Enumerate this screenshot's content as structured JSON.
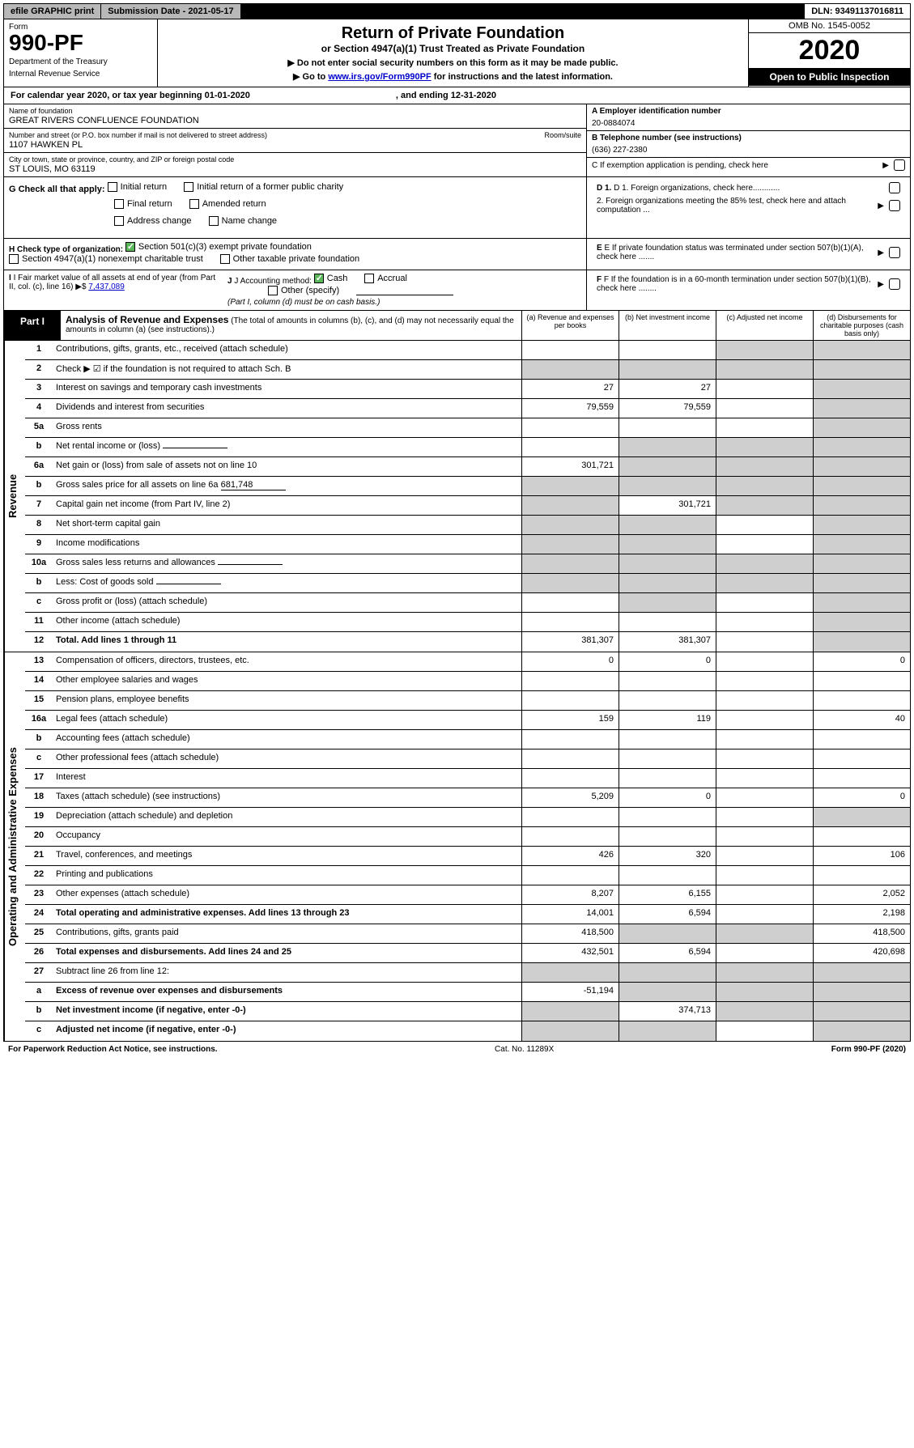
{
  "topbar": {
    "efile": "efile GRAPHIC print",
    "subdate": "Submission Date - 2021-05-17",
    "dln": "DLN: 93491137016811"
  },
  "header": {
    "form_label": "Form",
    "form_no": "990-PF",
    "dept": "Department of the Treasury",
    "irs": "Internal Revenue Service",
    "title": "Return of Private Foundation",
    "subtitle": "or Section 4947(a)(1) Trust Treated as Private Foundation",
    "note1": "▶ Do not enter social security numbers on this form as it may be made public.",
    "note2_pre": "▶ Go to ",
    "note2_link": "www.irs.gov/Form990PF",
    "note2_post": " for instructions and the latest information.",
    "omb": "OMB No. 1545-0052",
    "year": "2020",
    "inspect": "Open to Public Inspection"
  },
  "calyear": {
    "text": "For calendar year 2020, or tax year beginning 01-01-2020",
    "ending": ", and ending 12-31-2020"
  },
  "entity": {
    "name_label": "Name of foundation",
    "name": "GREAT RIVERS CONFLUENCE FOUNDATION",
    "addr_label": "Number and street (or P.O. box number if mail is not delivered to street address)",
    "addr": "1107 HAWKEN PL",
    "room_label": "Room/suite",
    "city_label": "City or town, state or province, country, and ZIP or foreign postal code",
    "city": "ST LOUIS, MO  63119",
    "a_label": "A Employer identification number",
    "a_val": "20-0884074",
    "b_label": "B Telephone number (see instructions)",
    "b_val": "(636) 227-2380",
    "c_label": "C  If exemption application is pending, check here"
  },
  "g": {
    "label": "G Check all that apply:",
    "opts": [
      "Initial return",
      "Initial return of a former public charity",
      "Final return",
      "Amended return",
      "Address change",
      "Name change"
    ]
  },
  "d": {
    "d1": "D 1. Foreign organizations, check here............",
    "d2": "2. Foreign organizations meeting the 85% test, check here and attach computation ...",
    "e": "E  If private foundation status was terminated under section 507(b)(1)(A), check here .......",
    "f": "F  If the foundation is in a 60-month termination under section 507(b)(1)(B), check here ........"
  },
  "h": {
    "label": "H Check type of organization:",
    "opt1": "Section 501(c)(3) exempt private foundation",
    "opt2": "Section 4947(a)(1) nonexempt charitable trust",
    "opt3": "Other taxable private foundation"
  },
  "i": {
    "label": "I Fair market value of all assets at end of year (from Part II, col. (c), line 16)",
    "sym": "▶$",
    "val": "7,437,089"
  },
  "j": {
    "label": "J Accounting method:",
    "cash": "Cash",
    "accrual": "Accrual",
    "other": "Other (specify)",
    "note": "(Part I, column (d) must be on cash basis.)"
  },
  "part1": {
    "label": "Part I",
    "title": "Analysis of Revenue and Expenses",
    "title_note": "(The total of amounts in columns (b), (c), and (d) may not necessarily equal the amounts in column (a) (see instructions).)",
    "col_a": "(a)   Revenue and expenses per books",
    "col_b": "(b)  Net investment income",
    "col_c": "(c)  Adjusted net income",
    "col_d": "(d)  Disbursements for charitable purposes (cash basis only)"
  },
  "revenue": {
    "side": "Revenue",
    "rows": [
      {
        "ln": "1",
        "desc": "Contributions, gifts, grants, etc., received (attach schedule)",
        "a": "",
        "b": "",
        "c": "",
        "d": "",
        "grey_cd": true
      },
      {
        "ln": "2",
        "desc": "Check ▶ ☑ if the foundation is not required to attach Sch. B",
        "a": "",
        "b": "",
        "c": "",
        "d": "",
        "grey_all": true,
        "bold_not": true
      },
      {
        "ln": "3",
        "desc": "Interest on savings and temporary cash investments",
        "a": "27",
        "b": "27",
        "c": "",
        "d": "",
        "grey_d": true
      },
      {
        "ln": "4",
        "desc": "Dividends and interest from securities",
        "a": "79,559",
        "b": "79,559",
        "c": "",
        "d": "",
        "grey_d": true
      },
      {
        "ln": "5a",
        "desc": "Gross rents",
        "a": "",
        "b": "",
        "c": "",
        "d": "",
        "grey_d": true
      },
      {
        "ln": "b",
        "desc": "Net rental income or (loss)",
        "a": "",
        "b": "",
        "c": "",
        "d": "",
        "grey_bcd": true,
        "fill": true
      },
      {
        "ln": "6a",
        "desc": "Net gain or (loss) from sale of assets not on line 10",
        "a": "301,721",
        "b": "",
        "c": "",
        "d": "",
        "grey_bcd": true
      },
      {
        "ln": "b",
        "desc": "Gross sales price for all assets on line 6a",
        "extra": "681,748",
        "a": "",
        "b": "",
        "c": "",
        "d": "",
        "grey_all": true,
        "fill": true
      },
      {
        "ln": "7",
        "desc": "Capital gain net income (from Part IV, line 2)",
        "a": "",
        "b": "301,721",
        "c": "",
        "d": "",
        "grey_acd": true
      },
      {
        "ln": "8",
        "desc": "Net short-term capital gain",
        "a": "",
        "b": "",
        "c": "",
        "d": "",
        "grey_abd": true
      },
      {
        "ln": "9",
        "desc": "Income modifications",
        "a": "",
        "b": "",
        "c": "",
        "d": "",
        "grey_abd": true
      },
      {
        "ln": "10a",
        "desc": "Gross sales less returns and allowances",
        "a": "",
        "b": "",
        "c": "",
        "d": "",
        "grey_all": true,
        "fill": true
      },
      {
        "ln": "b",
        "desc": "Less: Cost of goods sold",
        "a": "",
        "b": "",
        "c": "",
        "d": "",
        "grey_all": true,
        "fill": true
      },
      {
        "ln": "c",
        "desc": "Gross profit or (loss) (attach schedule)",
        "a": "",
        "b": "",
        "c": "",
        "d": "",
        "grey_bd": true
      },
      {
        "ln": "11",
        "desc": "Other income (attach schedule)",
        "a": "",
        "b": "",
        "c": "",
        "d": "",
        "grey_d": true
      },
      {
        "ln": "12",
        "desc": "Total. Add lines 1 through 11",
        "a": "381,307",
        "b": "381,307",
        "c": "",
        "d": "",
        "bold": true,
        "grey_d": true
      }
    ]
  },
  "expenses": {
    "side": "Operating and Administrative Expenses",
    "rows": [
      {
        "ln": "13",
        "desc": "Compensation of officers, directors, trustees, etc.",
        "a": "0",
        "b": "0",
        "c": "",
        "d": "0"
      },
      {
        "ln": "14",
        "desc": "Other employee salaries and wages",
        "a": "",
        "b": "",
        "c": "",
        "d": ""
      },
      {
        "ln": "15",
        "desc": "Pension plans, employee benefits",
        "a": "",
        "b": "",
        "c": "",
        "d": ""
      },
      {
        "ln": "16a",
        "desc": "Legal fees (attach schedule)",
        "a": "159",
        "b": "119",
        "c": "",
        "d": "40"
      },
      {
        "ln": "b",
        "desc": "Accounting fees (attach schedule)",
        "a": "",
        "b": "",
        "c": "",
        "d": ""
      },
      {
        "ln": "c",
        "desc": "Other professional fees (attach schedule)",
        "a": "",
        "b": "",
        "c": "",
        "d": ""
      },
      {
        "ln": "17",
        "desc": "Interest",
        "a": "",
        "b": "",
        "c": "",
        "d": ""
      },
      {
        "ln": "18",
        "desc": "Taxes (attach schedule) (see instructions)",
        "a": "5,209",
        "b": "0",
        "c": "",
        "d": "0"
      },
      {
        "ln": "19",
        "desc": "Depreciation (attach schedule) and depletion",
        "a": "",
        "b": "",
        "c": "",
        "d": "",
        "grey_d": true
      },
      {
        "ln": "20",
        "desc": "Occupancy",
        "a": "",
        "b": "",
        "c": "",
        "d": ""
      },
      {
        "ln": "21",
        "desc": "Travel, conferences, and meetings",
        "a": "426",
        "b": "320",
        "c": "",
        "d": "106"
      },
      {
        "ln": "22",
        "desc": "Printing and publications",
        "a": "",
        "b": "",
        "c": "",
        "d": ""
      },
      {
        "ln": "23",
        "desc": "Other expenses (attach schedule)",
        "a": "8,207",
        "b": "6,155",
        "c": "",
        "d": "2,052"
      },
      {
        "ln": "24",
        "desc": "Total operating and administrative expenses. Add lines 13 through 23",
        "a": "14,001",
        "b": "6,594",
        "c": "",
        "d": "2,198",
        "bold": true
      },
      {
        "ln": "25",
        "desc": "Contributions, gifts, grants paid",
        "a": "418,500",
        "b": "",
        "c": "",
        "d": "418,500",
        "grey_bc": true
      },
      {
        "ln": "26",
        "desc": "Total expenses and disbursements. Add lines 24 and 25",
        "a": "432,501",
        "b": "6,594",
        "c": "",
        "d": "420,698",
        "bold": true
      },
      {
        "ln": "27",
        "desc": "Subtract line 26 from line 12:",
        "a": "",
        "b": "",
        "c": "",
        "d": "",
        "grey_all": true
      },
      {
        "ln": "a",
        "desc": "Excess of revenue over expenses and disbursements",
        "a": "-51,194",
        "b": "",
        "c": "",
        "d": "",
        "bold": true,
        "grey_bcd": true
      },
      {
        "ln": "b",
        "desc": "Net investment income (if negative, enter -0-)",
        "a": "",
        "b": "374,713",
        "c": "",
        "d": "",
        "bold": true,
        "grey_acd": true
      },
      {
        "ln": "c",
        "desc": "Adjusted net income (if negative, enter -0-)",
        "a": "",
        "b": "",
        "c": "",
        "d": "",
        "bold": true,
        "grey_abd": true
      }
    ]
  },
  "footer": {
    "left": "For Paperwork Reduction Act Notice, see instructions.",
    "mid": "Cat. No. 11289X",
    "right": "Form 990-PF (2020)"
  }
}
